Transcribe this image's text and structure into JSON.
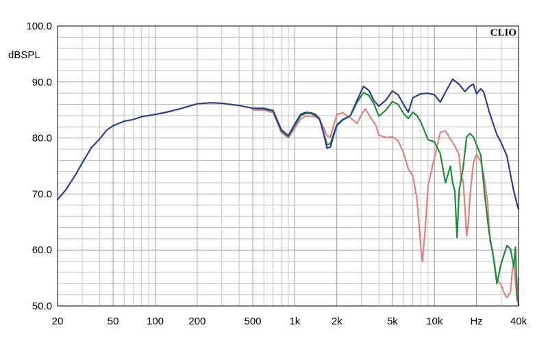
{
  "chart_data": {
    "type": "line",
    "title": "",
    "brand": "CLIO",
    "xlabel": "Hz",
    "ylabel": "dBSPL",
    "x_scale": "log",
    "xlim": [
      20,
      40000
    ],
    "ylim": [
      50,
      100
    ],
    "grid": true,
    "x_ticks": [
      {
        "value": 20,
        "label": "20"
      },
      {
        "value": 50,
        "label": "50"
      },
      {
        "value": 100,
        "label": "100"
      },
      {
        "value": 200,
        "label": "200"
      },
      {
        "value": 500,
        "label": "500"
      },
      {
        "value": 1000,
        "label": "1k"
      },
      {
        "value": 2000,
        "label": "2k"
      },
      {
        "value": 5000,
        "label": "5k"
      },
      {
        "value": 10000,
        "label": "10k"
      },
      {
        "value": 20000,
        "label": "Hz"
      },
      {
        "value": 40000,
        "label": "40k"
      }
    ],
    "y_ticks": [
      {
        "value": 100,
        "label": "100.0"
      },
      {
        "value": 90,
        "label": "90.0"
      },
      {
        "value": 80,
        "label": "80.0"
      },
      {
        "value": 70,
        "label": "70.0"
      },
      {
        "value": 60,
        "label": "60.0"
      },
      {
        "value": 50,
        "label": "50.0"
      }
    ],
    "series": [
      {
        "color": "#2a3f8f",
        "points": [
          [
            20,
            69.0
          ],
          [
            23,
            70.8
          ],
          [
            27,
            73.5
          ],
          [
            30,
            75.5
          ],
          [
            35,
            78.3
          ],
          [
            40,
            79.8
          ],
          [
            45,
            81.4
          ],
          [
            50,
            82.2
          ],
          [
            60,
            83.0
          ],
          [
            70,
            83.3
          ],
          [
            80,
            83.8
          ],
          [
            100,
            84.2
          ],
          [
            120,
            84.6
          ],
          [
            150,
            85.2
          ],
          [
            200,
            86.1
          ],
          [
            250,
            86.3
          ],
          [
            300,
            86.2
          ],
          [
            400,
            85.8
          ],
          [
            500,
            85.3
          ],
          [
            600,
            85.3
          ],
          [
            700,
            84.9
          ],
          [
            800,
            81.5
          ],
          [
            900,
            80.4
          ],
          [
            1000,
            82.5
          ],
          [
            1100,
            84.2
          ],
          [
            1200,
            84.6
          ],
          [
            1300,
            84.5
          ],
          [
            1400,
            84.2
          ],
          [
            1500,
            83.5
          ],
          [
            1600,
            81.0
          ],
          [
            1700,
            78.2
          ],
          [
            1800,
            78.4
          ],
          [
            1900,
            80.5
          ],
          [
            2000,
            82.2
          ],
          [
            2200,
            83.2
          ],
          [
            2500,
            84.0
          ],
          [
            2800,
            86.8
          ],
          [
            3100,
            89.2
          ],
          [
            3400,
            88.5
          ],
          [
            3700,
            86.6
          ],
          [
            4000,
            85.7
          ],
          [
            4500,
            86.8
          ],
          [
            5000,
            88.4
          ],
          [
            5500,
            87.7
          ],
          [
            6000,
            86.0
          ],
          [
            6500,
            84.6
          ],
          [
            7000,
            87.2
          ],
          [
            8000,
            87.9
          ],
          [
            9000,
            88.0
          ],
          [
            10000,
            87.7
          ],
          [
            11000,
            86.4
          ],
          [
            12000,
            88.2
          ],
          [
            13500,
            90.5
          ],
          [
            15000,
            89.6
          ],
          [
            16500,
            88.3
          ],
          [
            18000,
            89.3
          ],
          [
            19000,
            89.6
          ],
          [
            20000,
            87.9
          ],
          [
            21500,
            88.8
          ],
          [
            22500,
            88.2
          ],
          [
            25000,
            84.2
          ],
          [
            28000,
            80.6
          ],
          [
            30000,
            79.2
          ],
          [
            33000,
            76.8
          ],
          [
            35000,
            73.5
          ],
          [
            37000,
            70.5
          ],
          [
            39000,
            68.2
          ],
          [
            40000,
            67.3
          ]
        ]
      },
      {
        "color": "#1e8a3c",
        "points": [
          [
            500,
            85.3
          ],
          [
            600,
            85.2
          ],
          [
            700,
            84.8
          ],
          [
            800,
            81.3
          ],
          [
            900,
            80.3
          ],
          [
            1000,
            82.3
          ],
          [
            1100,
            84.0
          ],
          [
            1200,
            84.4
          ],
          [
            1300,
            84.4
          ],
          [
            1400,
            84.0
          ],
          [
            1500,
            83.4
          ],
          [
            1600,
            81.2
          ],
          [
            1700,
            78.8
          ],
          [
            1800,
            79.0
          ],
          [
            1900,
            80.8
          ],
          [
            2000,
            82.4
          ],
          [
            2200,
            83.3
          ],
          [
            2500,
            84.0
          ],
          [
            2800,
            86.4
          ],
          [
            3100,
            88.1
          ],
          [
            3400,
            87.6
          ],
          [
            3700,
            86.0
          ],
          [
            4000,
            83.9
          ],
          [
            4500,
            85.0
          ],
          [
            5000,
            86.5
          ],
          [
            5500,
            86.0
          ],
          [
            6000,
            84.4
          ],
          [
            6500,
            83.5
          ],
          [
            7000,
            84.6
          ],
          [
            7500,
            84.0
          ],
          [
            8000,
            82.8
          ],
          [
            9000,
            79.7
          ],
          [
            10000,
            79.3
          ],
          [
            11000,
            77.2
          ],
          [
            12000,
            72.0
          ],
          [
            13000,
            75.0
          ],
          [
            13500,
            72.0
          ],
          [
            14000,
            70.5
          ],
          [
            14500,
            62.2
          ],
          [
            15000,
            70.5
          ],
          [
            16000,
            74.5
          ],
          [
            17000,
            80.2
          ],
          [
            18000,
            80.8
          ],
          [
            19000,
            80.2
          ],
          [
            20000,
            78.8
          ],
          [
            21500,
            76.9
          ],
          [
            23000,
            69.4
          ],
          [
            24500,
            63.5
          ],
          [
            26500,
            58.5
          ],
          [
            28000,
            54.0
          ],
          [
            30000,
            57.5
          ],
          [
            33000,
            60.8
          ],
          [
            35000,
            60.2
          ],
          [
            37000,
            57.0
          ],
          [
            38000,
            60.5
          ],
          [
            39000,
            52.0
          ],
          [
            40000,
            50.2
          ]
        ]
      },
      {
        "color": "#e08080",
        "points": [
          [
            500,
            85.0
          ],
          [
            600,
            85.0
          ],
          [
            700,
            84.5
          ],
          [
            800,
            81.0
          ],
          [
            900,
            80.0
          ],
          [
            1000,
            81.8
          ],
          [
            1100,
            83.4
          ],
          [
            1200,
            83.9
          ],
          [
            1300,
            83.9
          ],
          [
            1400,
            83.8
          ],
          [
            1500,
            83.3
          ],
          [
            1600,
            82.0
          ],
          [
            1700,
            80.4
          ],
          [
            1800,
            80.2
          ],
          [
            1900,
            82.3
          ],
          [
            2000,
            84.2
          ],
          [
            2200,
            84.5
          ],
          [
            2500,
            83.6
          ],
          [
            2800,
            82.6
          ],
          [
            3000,
            84.2
          ],
          [
            3200,
            85.2
          ],
          [
            3500,
            83.6
          ],
          [
            3800,
            82.3
          ],
          [
            4000,
            80.5
          ],
          [
            4500,
            80.1
          ],
          [
            5000,
            80.2
          ],
          [
            5500,
            79.5
          ],
          [
            6000,
            77.4
          ],
          [
            6500,
            74.5
          ],
          [
            7000,
            73.2
          ],
          [
            7500,
            69.0
          ],
          [
            8000,
            60.4
          ],
          [
            8200,
            57.9
          ],
          [
            8600,
            64.0
          ],
          [
            9000,
            71.5
          ],
          [
            10000,
            76.5
          ],
          [
            11000,
            81.0
          ],
          [
            12000,
            81.3
          ],
          [
            13000,
            79.8
          ],
          [
            14000,
            78.6
          ],
          [
            15000,
            77.0
          ],
          [
            15500,
            73.0
          ],
          [
            16000,
            72.5
          ],
          [
            16500,
            68.0
          ],
          [
            17000,
            62.5
          ],
          [
            17500,
            65.0
          ],
          [
            18000,
            70.0
          ],
          [
            19000,
            75.5
          ],
          [
            20000,
            77.1
          ],
          [
            21500,
            75.8
          ],
          [
            22500,
            73.5
          ],
          [
            24000,
            68.5
          ],
          [
            25000,
            61.5
          ],
          [
            26000,
            60.0
          ],
          [
            28000,
            54.8
          ],
          [
            30000,
            53.8
          ],
          [
            32000,
            52.0
          ],
          [
            33000,
            51.5
          ],
          [
            35000,
            52.5
          ],
          [
            36000,
            56.0
          ],
          [
            37000,
            57.8
          ],
          [
            38000,
            54.5
          ],
          [
            39000,
            51.0
          ],
          [
            40000,
            55.0
          ]
        ]
      }
    ]
  }
}
